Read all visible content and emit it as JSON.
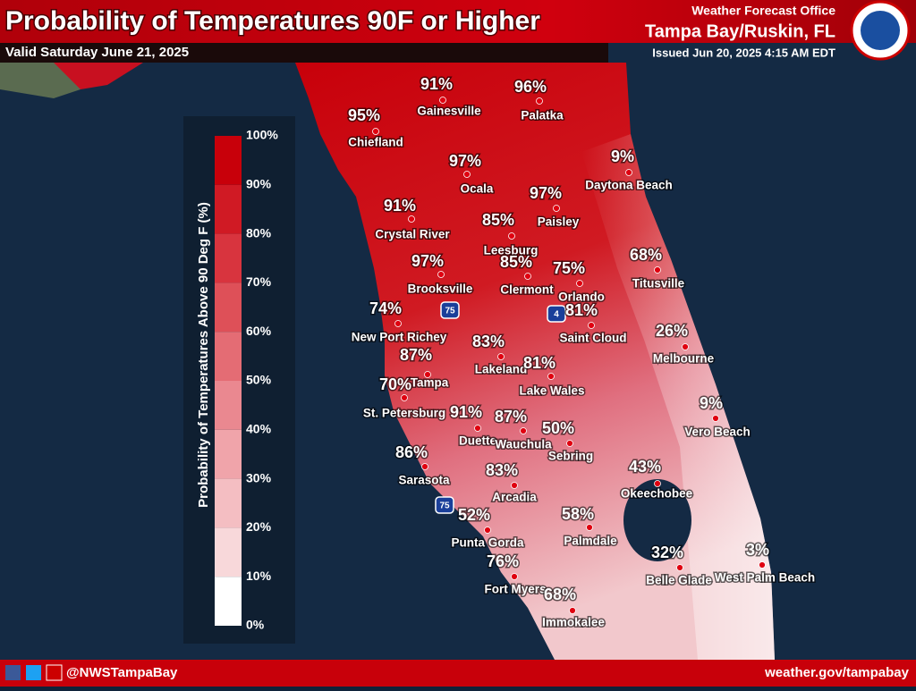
{
  "header": {
    "title": "Probability of Temperatures 90F or Higher",
    "valid": "Valid Saturday June 21, 2025",
    "office": "Weather Forecast Office",
    "location": "Tampa Bay/Ruskin, FL",
    "issued": "Issued Jun 20, 2025 4:15 AM EDT"
  },
  "legend": {
    "title": "Probability of Temperatures Above 90 Deg F (%)",
    "ticks": [
      "100%",
      "90%",
      "80%",
      "70%",
      "60%",
      "50%",
      "40%",
      "30%",
      "20%",
      "10%",
      "0%"
    ]
  },
  "cities": [
    {
      "name": "Chiefland",
      "value": "95%"
    },
    {
      "name": "Gainesville",
      "value": "91%"
    },
    {
      "name": "Palatka",
      "value": "96%"
    },
    {
      "name": "Ocala",
      "value": "97%"
    },
    {
      "name": "Daytona Beach",
      "value": "9%"
    },
    {
      "name": "Paisley",
      "value": "97%"
    },
    {
      "name": "Crystal River",
      "value": "91%"
    },
    {
      "name": "Leesburg",
      "value": "85%"
    },
    {
      "name": "Brooksville",
      "value": "97%"
    },
    {
      "name": "Clermont",
      "value": "85%"
    },
    {
      "name": "Orlando",
      "value": "75%"
    },
    {
      "name": "Titusville",
      "value": "68%"
    },
    {
      "name": "New Port Richey",
      "value": "74%"
    },
    {
      "name": "Saint Cloud",
      "value": "81%"
    },
    {
      "name": "Lakeland",
      "value": "83%"
    },
    {
      "name": "Melbourne",
      "value": "26%"
    },
    {
      "name": "Tampa",
      "value": "87%"
    },
    {
      "name": "Lake Wales",
      "value": "81%"
    },
    {
      "name": "St. Petersburg",
      "value": "70%"
    },
    {
      "name": "Duette",
      "value": "91%"
    },
    {
      "name": "Wauchula",
      "value": "87%"
    },
    {
      "name": "Sebring",
      "value": "50%"
    },
    {
      "name": "Vero Beach",
      "value": "9%"
    },
    {
      "name": "Sarasota",
      "value": "86%"
    },
    {
      "name": "Arcadia",
      "value": "83%"
    },
    {
      "name": "Okeechobee",
      "value": "43%"
    },
    {
      "name": "Punta Gorda",
      "value": "52%"
    },
    {
      "name": "Palmdale",
      "value": "58%"
    },
    {
      "name": "Belle Glade",
      "value": "32%"
    },
    {
      "name": "West Palm Beach",
      "value": "3%"
    },
    {
      "name": "Fort Myers",
      "value": "76%"
    },
    {
      "name": "Immokalee",
      "value": "68%"
    }
  ],
  "shields": [
    "75",
    "4",
    "75"
  ],
  "footer": {
    "handle": "@NWSTampaBay",
    "url": "weather.gov/tampabay"
  }
}
